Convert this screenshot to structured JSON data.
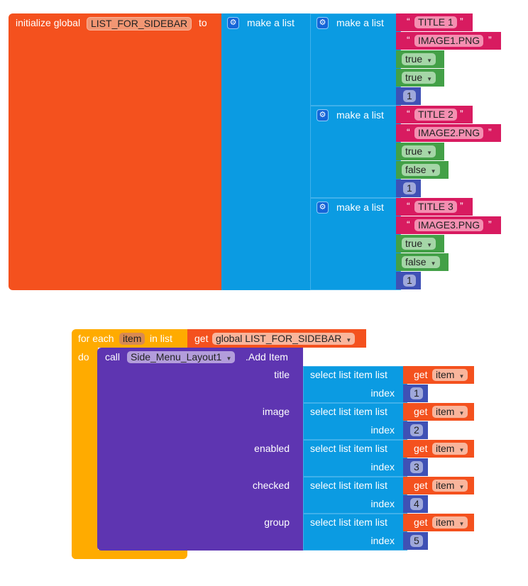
{
  "init": {
    "label": "initialize global",
    "var_name": "LIST_FOR_SIDEBAR",
    "to": "to",
    "make_list": "make a list"
  },
  "lists": [
    {
      "label": "make a list",
      "title": "TITLE 1",
      "image": "IMAGE1.PNG",
      "enabled": "true",
      "checked": "true",
      "group": "1"
    },
    {
      "label": "make a list",
      "title": "TITLE 2",
      "image": "IMAGE2.PNG",
      "enabled": "true",
      "checked": "false",
      "group": "1"
    },
    {
      "label": "make a list",
      "title": "TITLE 3",
      "image": "IMAGE3.PNG",
      "enabled": "true",
      "checked": "false",
      "group": "1"
    }
  ],
  "quote_open": "“",
  "quote_close": "”",
  "foreach": {
    "label": "for each",
    "var": "item",
    "in_list": "in list",
    "do": "do",
    "get": "get",
    "source": "global LIST_FOR_SIDEBAR"
  },
  "call": {
    "label": "call",
    "component": "Side_Menu_Layout1",
    "method": ".Add Item"
  },
  "params": [
    {
      "name": "title",
      "index": "1"
    },
    {
      "name": "image",
      "index": "2"
    },
    {
      "name": "enabled",
      "index": "3"
    },
    {
      "name": "checked",
      "index": "4"
    },
    {
      "name": "group",
      "index": "5"
    }
  ],
  "select": {
    "label": "select list item  list",
    "index_label": "index",
    "get": "get",
    "var": "item"
  },
  "icons": {
    "mutator": "gear-icon",
    "dropdown": "dropdown-arrow-icon"
  },
  "colors": {
    "variables": "#f4511e",
    "lists": "#0b9be2",
    "text": "#d81b60",
    "logic": "#43a047",
    "math": "#3f51b5",
    "control": "#ffab00",
    "component": "#5e35b1"
  }
}
